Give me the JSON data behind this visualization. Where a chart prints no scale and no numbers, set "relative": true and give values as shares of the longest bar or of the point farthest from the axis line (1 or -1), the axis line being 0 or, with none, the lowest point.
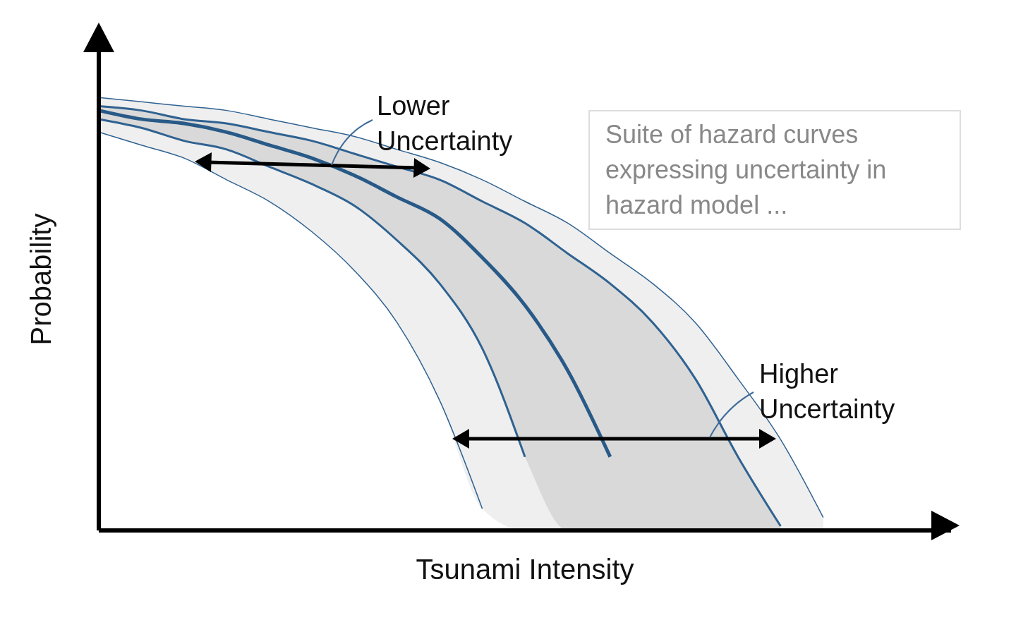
{
  "chart_data": {
    "type": "line",
    "relative": true,
    "xlabel": "Tsunami Intensity",
    "ylabel": "Probability",
    "categories": [
      null,
      null,
      null,
      null,
      null,
      null,
      null,
      null,
      null,
      null,
      null,
      null,
      null,
      null,
      null,
      null,
      null,
      null,
      null,
      null,
      null
    ],
    "series": [
      {
        "color": "#2f6291",
        "values": [
          0.92,
          0.89,
          0.86,
          0.81,
          0.76,
          0.69,
          0.6,
          0.48,
          0.3,
          0.05,
          null,
          null,
          null,
          null,
          null,
          null,
          null,
          null,
          null,
          null,
          null
        ]
      },
      {
        "color": "#2f6291",
        "values": [
          0.95,
          0.93,
          0.9,
          0.88,
          0.84,
          0.8,
          0.75,
          0.67,
          0.57,
          0.42,
          0.17,
          null,
          null,
          null,
          null,
          null,
          null,
          null,
          null,
          null,
          null
        ]
      },
      {
        "color": "#285a88",
        "values": [
          0.97,
          0.95,
          0.94,
          0.92,
          0.89,
          0.86,
          0.82,
          0.77,
          0.72,
          0.63,
          0.52,
          0.37,
          0.17,
          null,
          null,
          null,
          null,
          null,
          null,
          null,
          null
        ],
        "lower": [
          0.95,
          0.93,
          0.9,
          0.88,
          0.84,
          0.8,
          0.75,
          0.67,
          0.57,
          0.42,
          0.17,
          0,
          0,
          0,
          0,
          0,
          0,
          null,
          null,
          null,
          null
        ],
        "upper": [
          0.98,
          0.97,
          0.95,
          0.94,
          0.92,
          0.9,
          0.87,
          0.84,
          0.81,
          0.76,
          0.71,
          0.64,
          0.57,
          0.48,
          0.35,
          0.17,
          0.01,
          null,
          null,
          null,
          null
        ]
      },
      {
        "color": "#2f6291",
        "values": [
          0.98,
          0.97,
          0.95,
          0.94,
          0.92,
          0.9,
          0.87,
          0.84,
          0.81,
          0.76,
          0.71,
          0.64,
          0.57,
          0.48,
          0.35,
          0.17,
          0.01,
          null,
          null,
          null,
          null
        ]
      },
      {
        "color": "#2f6291",
        "values": [
          1,
          0.99,
          0.98,
          0.97,
          0.95,
          0.93,
          0.91,
          0.88,
          0.85,
          0.81,
          0.76,
          0.71,
          0.64,
          0.57,
          0.48,
          0.35,
          0.21,
          0.03,
          null,
          null,
          null
        ],
        "lower": [
          0.92,
          0.89,
          0.86,
          0.81,
          0.76,
          0.69,
          0.6,
          0.48,
          0.3,
          0.05,
          0,
          0,
          0,
          0,
          0,
          0,
          0,
          0,
          null,
          null,
          null
        ],
        "upper": [
          1,
          0.99,
          0.98,
          0.97,
          0.95,
          0.93,
          0.91,
          0.88,
          0.85,
          0.81,
          0.76,
          0.71,
          0.64,
          0.57,
          0.48,
          0.35,
          0.21,
          0.03,
          null,
          null,
          null
        ]
      }
    ],
    "annotations": [
      "Lower Uncertainty",
      "Higher Uncertainty",
      "Suite of hazard curves expressing uncertainty in hazard model ..."
    ]
  }
}
